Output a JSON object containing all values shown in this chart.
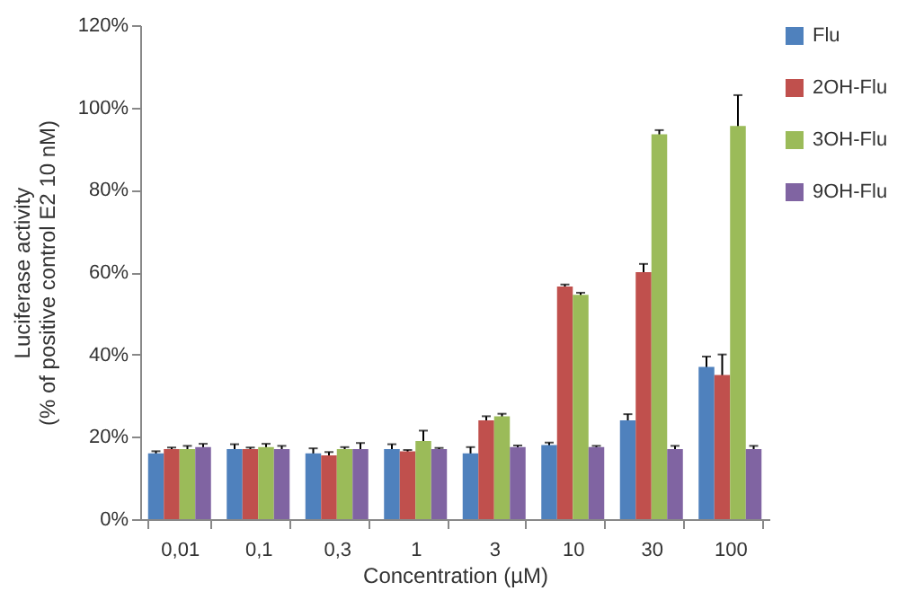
{
  "chart_data": {
    "type": "bar",
    "xlabel": "Concentration (µM)",
    "ylabel": "Luciferase activity\n(% of positive control E2 10 nM)",
    "categories": [
      "0,01",
      "0,1",
      "0,3",
      "1",
      "3",
      "10",
      "30",
      "100"
    ],
    "series": [
      {
        "name": "Flu",
        "color": "#4f81bd",
        "values": [
          16,
          17,
          16,
          17,
          16,
          18,
          24,
          37
        ],
        "errors": [
          0.5,
          1.2,
          1.2,
          1.2,
          1.5,
          0.6,
          1.5,
          2.5
        ]
      },
      {
        "name": "2OH-Flu",
        "color": "#c0504d",
        "values": [
          17,
          17,
          15.5,
          16.5,
          24,
          56.5,
          60,
          35
        ],
        "errors": [
          0.4,
          0.4,
          0.8,
          0.3,
          1,
          0.5,
          2,
          5
        ]
      },
      {
        "name": "3OH-Flu",
        "color": "#9bbb59",
        "values": [
          17,
          17.5,
          17,
          19,
          25,
          54.5,
          93.5,
          95.5
        ],
        "errors": [
          0.8,
          0.8,
          0.5,
          2.5,
          0.6,
          0.5,
          1,
          7.5
        ]
      },
      {
        "name": "9OH-Flu",
        "color": "#8064a2",
        "values": [
          17.5,
          17,
          17,
          17,
          17.5,
          17.5,
          17,
          17
        ],
        "errors": [
          0.8,
          0.8,
          1.5,
          0.3,
          0.4,
          0.3,
          0.8,
          0.8
        ]
      }
    ],
    "ylim": [
      0,
      120
    ],
    "yticks": [
      {
        "value": 0,
        "label": "0%"
      },
      {
        "value": 20,
        "label": "20%"
      },
      {
        "value": 40,
        "label": "40%"
      },
      {
        "value": 60,
        "label": "60%"
      },
      {
        "value": 80,
        "label": "80%"
      },
      {
        "value": 100,
        "label": "100%"
      },
      {
        "value": 120,
        "label": "120%"
      }
    ],
    "legend": "right",
    "grid": false
  }
}
